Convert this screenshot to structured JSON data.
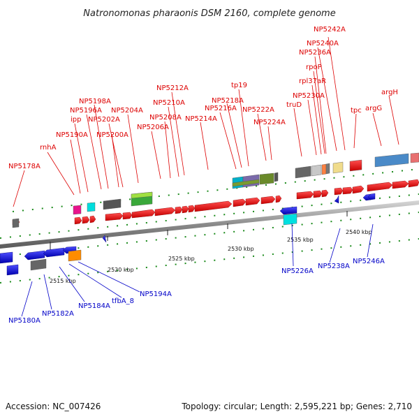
{
  "title": "Natronomonas pharaonis DSM 2160, complete genome",
  "footer": {
    "accession": "Accession: NC_007426",
    "summary": "Topology: circular; Length: 2,595,221 bp; Genes: 2,710"
  },
  "scale_labels": [
    "2515 kbp",
    "2520 kbp",
    "2525 kbp",
    "2530 kbp",
    "2535 kbp",
    "2540 kbp"
  ],
  "forward_genes": [
    "NP5178A",
    "rnhA",
    "NP5190A",
    "ipp",
    "NP5196A",
    "NP5198A",
    "NP5202A",
    "NP5200A",
    "NP5204A",
    "NP5206A",
    "NP5208A",
    "NP5210A",
    "NP5212A",
    "NP5214A",
    "NP5216A",
    "NP5218A",
    "tp19",
    "NP5222A",
    "NP5224A",
    "truD",
    "NP5230A",
    "rpl37aR",
    "rpoP",
    "NP5236A",
    "NP5240A",
    "NP5242A",
    "tpc",
    "argG",
    "argH"
  ],
  "reverse_genes": [
    "NP5180A",
    "NP5182A",
    "NP5184A",
    "tfbA_8",
    "NP5194A",
    "NP5226A",
    "NP5238A",
    "NP5246A"
  ],
  "colors": {
    "forward_label": "#dd0000",
    "reverse_label": "#0000c8",
    "cds_forward": "#e80000",
    "cds_reverse": "#0000e0",
    "tick": "#1a8a1a",
    "backbone": "#8a8a8a"
  }
}
